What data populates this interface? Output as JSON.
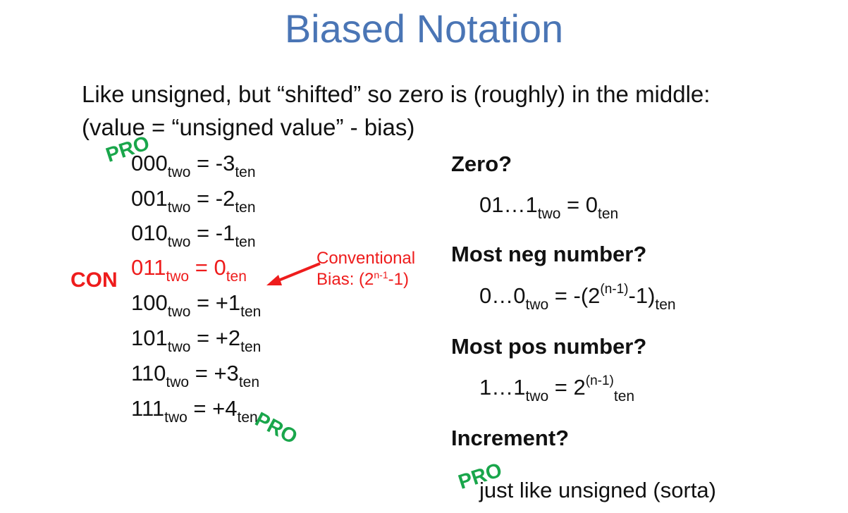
{
  "title": "Biased Notation",
  "intro": "Like unsigned, but “shifted” so zero is (roughly) in the middle: (value = “unsigned value” - bias)",
  "rows": [
    {
      "bits": "000",
      "sub1": "two",
      "eq": " = ",
      "val": "-3",
      "sub2": "ten"
    },
    {
      "bits": "001",
      "sub1": "two",
      "eq": " = ",
      "val": "-2",
      "sub2": "ten"
    },
    {
      "bits": "010",
      "sub1": "two",
      "eq": " = ",
      "val": "-1",
      "sub2": "ten"
    },
    {
      "bits": "011",
      "sub1": "two",
      "eq": " = ",
      "val": "0",
      "sub2": "ten"
    },
    {
      "bits": "100",
      "sub1": "two",
      "eq": " = ",
      "val": "+1",
      "sub2": "ten"
    },
    {
      "bits": "101",
      "sub1": "two",
      "eq": " = ",
      "val": "+2",
      "sub2": "ten"
    },
    {
      "bits": "110",
      "sub1": "two",
      "eq": " = ",
      "val": "+3",
      "sub2": "ten"
    },
    {
      "bits": "111",
      "sub1": "two",
      "eq": " = ",
      "val": "+4",
      "sub2": "ten"
    }
  ],
  "labels": {
    "pro": "PRO",
    "con": "CON"
  },
  "note": {
    "line1": "Conventional",
    "line2_pre": "Bias: (2",
    "line2_sup": "n-1",
    "line2_post": "-1)"
  },
  "questions": {
    "zero": {
      "q": "Zero?",
      "a": {
        "pre": "01…1",
        "sub1": "two",
        "eq": " = 0",
        "sub2": "ten"
      }
    },
    "most_neg": {
      "q": "Most neg number?",
      "a": {
        "pre": "0…0",
        "sub1": "two",
        "eq": " = -(2",
        "sup": "(n-1)",
        "post": "-1)",
        "sub2": "ten"
      }
    },
    "most_pos": {
      "q": "Most pos number?",
      "a": {
        "pre": "1…1",
        "sub1": "two",
        "eq": " = 2",
        "sup": "(n-1)",
        "sub2": "ten"
      }
    },
    "increment": {
      "q": "Increment?",
      "a": "just like unsigned (sorta)"
    }
  },
  "colors": {
    "title": "#4a75b5",
    "highlight": "#ee1c1c",
    "pro": "#19a64b"
  }
}
